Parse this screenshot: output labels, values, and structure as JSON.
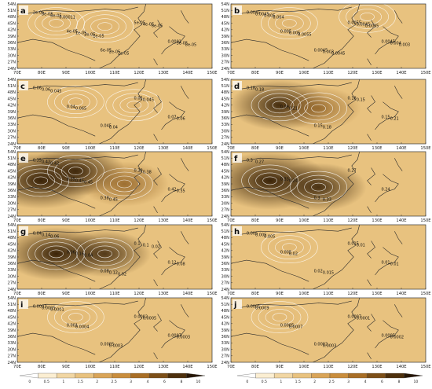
{
  "colors": {
    "background": "#e8c27f",
    "contour": "#ffffff",
    "coast": "#2a2a2a",
    "ramp": [
      "#ffffff",
      "#fbeed2",
      "#f1d6a3",
      "#e8c27f",
      "#d9a458",
      "#c98d3d",
      "#a86e26",
      "#7c4f18",
      "#4d300d",
      "#261605"
    ]
  },
  "map": {
    "lat_ticks": [
      "54N",
      "51N",
      "48N",
      "45N",
      "42N",
      "39N",
      "36N",
      "33N",
      "30N",
      "27N",
      "24N"
    ],
    "lon_ticks": [
      "70E",
      "80E",
      "90E",
      "100E",
      "110E",
      "120E",
      "130E",
      "140E",
      "150E"
    ]
  },
  "panels": [
    {
      "label": "a",
      "contour_labels": [
        "2e-05",
        "4e-05",
        "6e-05",
        "5e-05",
        "0.0001",
        "8e-05",
        "1e-05",
        "2e-05",
        "4e-05",
        "3e-05",
        "6e-05",
        "2e-05",
        "2e-05",
        "6e-05",
        "8e-05",
        "0.00011",
        "1e-05"
      ],
      "hotspots": [
        [
          0.2,
          0.3,
          0.2
        ],
        [
          0.45,
          0.35,
          0.25
        ]
      ]
    },
    {
      "label": "b",
      "contour_labels": [
        "0.0045",
        "0.005",
        "0.0045",
        "0.0055",
        "0.0045",
        "0.0045",
        "0.005",
        "0.003",
        "0.0045",
        "0.004",
        "0.005",
        "0.0055",
        "0.0045",
        "0.0035",
        "0.003",
        "0.004"
      ],
      "hotspots": [
        [
          0.3,
          0.3,
          0.2
        ],
        [
          0.7,
          0.2,
          0.2
        ]
      ]
    },
    {
      "label": "c",
      "contour_labels": [
        "0.06",
        "0.04",
        "0.045",
        "0.05",
        "0.07",
        "0.06",
        "0.065",
        "0.04",
        "0.045",
        "0.06",
        "0.045"
      ],
      "hotspots": [
        [
          0.3,
          0.35,
          0.25
        ],
        [
          0.6,
          0.4,
          0.2
        ]
      ]
    },
    {
      "label": "d",
      "contour_labels": [
        "0.18",
        "0.09",
        "0.15",
        "0.18",
        "0.15",
        "0.18",
        "0.21",
        "0.18",
        "0.15",
        "0.21"
      ],
      "hotspots": [
        [
          0.25,
          0.4,
          0.75
        ],
        [
          0.45,
          0.45,
          0.55
        ]
      ]
    },
    {
      "label": "e",
      "contour_labels": [
        "0.35",
        "0.35",
        "0.38",
        "0.38",
        "0.42",
        "0.42",
        "0.45",
        "0.45",
        "0.38",
        "0.35",
        "0.42",
        "0.45"
      ],
      "hotspots": [
        [
          0.12,
          0.45,
          0.95
        ],
        [
          0.3,
          0.3,
          0.75
        ],
        [
          0.55,
          0.5,
          0.6
        ]
      ]
    },
    {
      "label": "f",
      "contour_labels": [
        "0.3",
        "0.33",
        "0.3",
        "0.27",
        "0.24",
        "0.27",
        "0.24",
        "0.33"
      ],
      "hotspots": [
        [
          0.2,
          0.45,
          1.0
        ],
        [
          0.45,
          0.55,
          0.7
        ]
      ]
    },
    {
      "label": "g",
      "contour_labels": [
        "0.04",
        "0.06",
        "0.08",
        "0.1",
        "0.12",
        "0.14",
        "0.16",
        "0.12",
        "0.1",
        "0.08",
        "0.06",
        "0.04",
        "0.02",
        "0.02"
      ],
      "hotspots": [
        [
          0.2,
          0.45,
          0.85
        ],
        [
          0.45,
          0.45,
          0.65
        ]
      ]
    },
    {
      "label": "h",
      "contour_labels": [
        "0.005",
        "0.005",
        "0.02",
        "0.015",
        "0.01",
        "0.005",
        "0.02",
        "0.015",
        "0.01",
        "0.01",
        "0.005"
      ],
      "hotspots": [
        [
          0.3,
          0.35,
          0.15
        ]
      ]
    },
    {
      "label": "i",
      "contour_labels": [
        "0.0003",
        "0.001",
        "0.0005",
        "0.0002",
        "0.0007",
        "0.0005",
        "0.0004",
        "0.0003",
        "0.0005",
        "0.0003",
        "0.0001"
      ],
      "hotspots": [
        [
          0.3,
          0.3,
          0.1
        ]
      ]
    },
    {
      "label": "j",
      "contour_labels": [
        "0.0001",
        "0.0005",
        "0.0002",
        "0.0007",
        "0.0005",
        "0.0009",
        "0.0007",
        "0.0003",
        "0.0001",
        "0.0002"
      ],
      "hotspots": [
        [
          0.25,
          0.3,
          0.1
        ]
      ]
    }
  ],
  "colorbars": [
    {
      "ticks": [
        "0",
        "0.5",
        "1",
        "1.5",
        "2",
        "2.5",
        "3",
        "4",
        "6",
        "8",
        "10"
      ]
    },
    {
      "ticks": [
        "0",
        "0.5",
        "1",
        "1.5",
        "2",
        "2.5",
        "3",
        "4",
        "6",
        "8",
        "10"
      ]
    }
  ]
}
